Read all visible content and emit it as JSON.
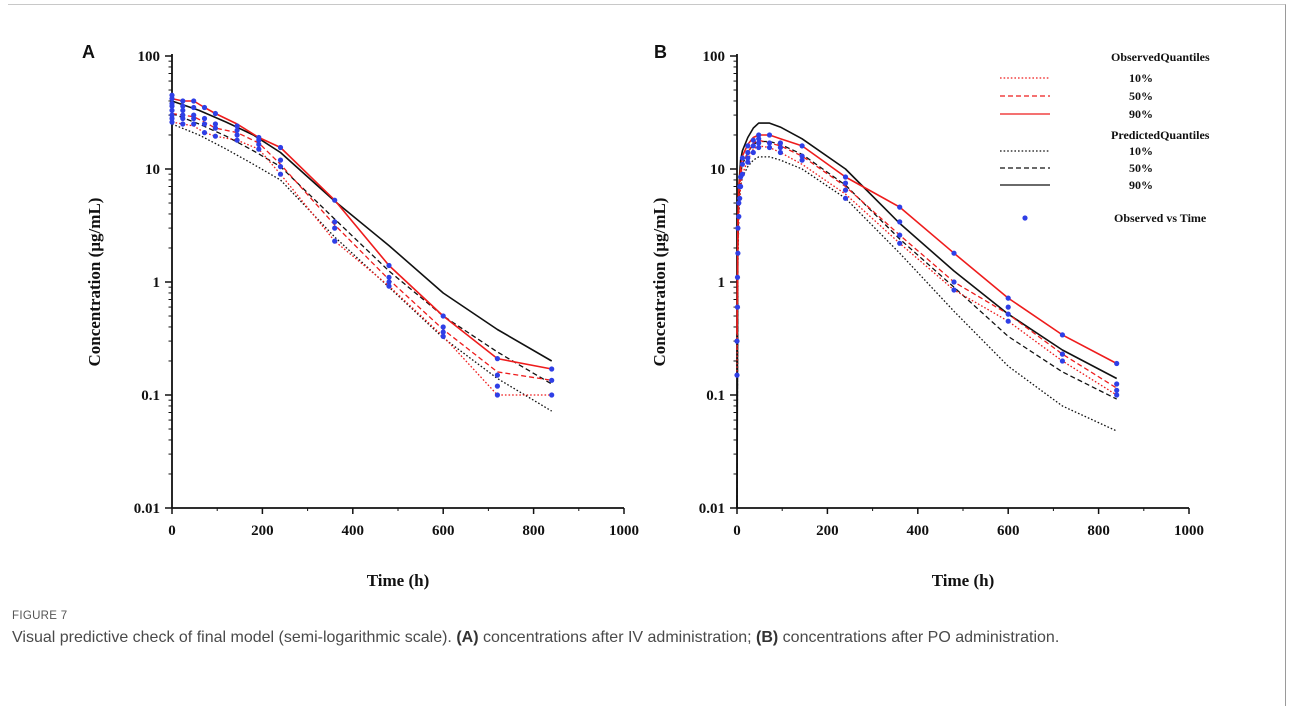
{
  "caption": {
    "figure_label": "FIGURE 7",
    "text_1": "Visual predictive check of final model (semi-logarithmic scale). ",
    "bold_1": "(A)",
    "text_2": " concentrations after IV administration; ",
    "bold_2": "(B)",
    "text_3": " concentrations after PO administration."
  },
  "colors": {
    "observed_quantiles": "#ee1c1c",
    "predicted_quantiles": "#111111",
    "observed_points": "#2f3fe6"
  },
  "legend": {
    "observed_header": "ObservedQuantiles",
    "predicted_header": "PredictedQuantiles",
    "points_label": "Observed vs Time",
    "levels": [
      "10%",
      "50%",
      "90%"
    ],
    "placement": "top-right of panel B"
  },
  "chart_data": [
    {
      "panel": "A",
      "type": "line",
      "xlabel": "Time (h)",
      "ylabel": "Concentration (µg/mL)",
      "xlim": [
        0,
        1000
      ],
      "ylim": [
        0.01,
        100
      ],
      "yscale": "log",
      "x_ticks": [
        0,
        200,
        400,
        600,
        800,
        1000
      ],
      "y_ticks": [
        0.01,
        0.1,
        1,
        10,
        100
      ],
      "grid": false,
      "observed_quantiles": [
        {
          "name": "10%",
          "x": [
            0,
            24,
            48,
            72,
            96,
            144,
            192,
            240,
            360,
            480,
            600,
            720,
            840
          ],
          "y": [
            26,
            25,
            24,
            21,
            19.5,
            18,
            15,
            9,
            2.3,
            0.92,
            0.33,
            0.1,
            0.1
          ]
        },
        {
          "name": "50%",
          "x": [
            0,
            24,
            48,
            72,
            96,
            144,
            192,
            240,
            360,
            480,
            600,
            720,
            840
          ],
          "y": [
            31,
            30,
            29,
            26,
            23,
            21,
            17,
            11,
            3.2,
            1.05,
            0.38,
            0.16,
            0.135
          ]
        },
        {
          "name": "90%",
          "x": [
            0,
            24,
            48,
            72,
            96,
            144,
            192,
            240,
            360,
            480,
            600,
            720,
            840
          ],
          "y": [
            42,
            40,
            40,
            35,
            31,
            25,
            19,
            15.5,
            5.3,
            1.4,
            0.5,
            0.21,
            0.17
          ]
        }
      ],
      "predicted_quantiles": [
        {
          "name": "10%",
          "x": [
            0,
            60,
            120,
            180,
            240,
            360,
            480,
            600,
            720,
            840
          ],
          "y": [
            25,
            20,
            15,
            11,
            8,
            2.5,
            0.9,
            0.32,
            0.14,
            0.072
          ]
        },
        {
          "name": "50%",
          "x": [
            0,
            60,
            120,
            180,
            240,
            360,
            480,
            600,
            720,
            840
          ],
          "y": [
            31,
            25,
            19.5,
            14.5,
            10.5,
            3.6,
            1.25,
            0.5,
            0.24,
            0.125
          ]
        },
        {
          "name": "90%",
          "x": [
            0,
            60,
            120,
            180,
            240,
            360,
            480,
            600,
            720,
            840
          ],
          "y": [
            40,
            33,
            26,
            20,
            14,
            5.2,
            2.1,
            0.8,
            0.38,
            0.2
          ]
        }
      ],
      "observed_points": {
        "x": [
          0,
          0,
          0,
          0,
          0,
          0,
          0,
          0,
          24,
          24,
          24,
          24,
          24,
          24,
          48,
          48,
          48,
          48,
          48,
          72,
          72,
          72,
          72,
          96,
          96,
          96,
          96,
          144,
          144,
          144,
          144,
          192,
          192,
          192,
          192,
          240,
          240,
          240,
          240,
          360,
          360,
          360,
          360,
          480,
          480,
          480,
          480,
          600,
          600,
          600,
          600,
          720,
          720,
          720,
          720,
          840,
          840,
          840
        ],
        "y": [
          26,
          28,
          30,
          33,
          36,
          38,
          42,
          45,
          25,
          28,
          30,
          33,
          36,
          40,
          25,
          28,
          30,
          35,
          40,
          21,
          25,
          28,
          35,
          19.5,
          23,
          25,
          31,
          18,
          20,
          22,
          24,
          15,
          16.5,
          18,
          19,
          9,
          10.5,
          12,
          15.5,
          2.3,
          3,
          3.4,
          5.3,
          0.92,
          1,
          1.1,
          1.4,
          0.33,
          0.36,
          0.4,
          0.5,
          0.1,
          0.12,
          0.15,
          0.21,
          0.1,
          0.135,
          0.17
        ]
      }
    },
    {
      "panel": "B",
      "type": "line",
      "xlabel": "Time (h)",
      "ylabel": "Concentration (µg/mL)",
      "xlim": [
        0,
        1000
      ],
      "ylim": [
        0.01,
        100
      ],
      "yscale": "log",
      "x_ticks": [
        0,
        200,
        400,
        600,
        800,
        1000
      ],
      "y_ticks": [
        0.01,
        0.1,
        1,
        10,
        100
      ],
      "grid": false,
      "observed_quantiles": [
        {
          "name": "10%",
          "x": [
            0,
            1,
            2,
            4,
            8,
            12,
            24,
            36,
            48,
            72,
            96,
            144,
            240,
            360,
            480,
            600,
            720,
            840
          ],
          "y": [
            0.15,
            0.5,
            1.5,
            4,
            7,
            9,
            12,
            15,
            16,
            15.5,
            14,
            11,
            6,
            2.2,
            0.85,
            0.45,
            0.2,
            0.1
          ]
        },
        {
          "name": "50%",
          "x": [
            0,
            1,
            2,
            4,
            8,
            12,
            24,
            36,
            48,
            72,
            96,
            144,
            240,
            360,
            480,
            600,
            720,
            840
          ],
          "y": [
            0.25,
            0.8,
            2.5,
            5.5,
            8.5,
            11,
            14,
            17,
            18,
            17,
            16,
            13,
            7,
            2.6,
            1,
            0.52,
            0.23,
            0.115
          ]
        },
        {
          "name": "90%",
          "x": [
            0,
            1,
            2,
            4,
            8,
            12,
            24,
            36,
            48,
            72,
            96,
            144,
            240,
            360,
            480,
            600,
            720,
            840
          ],
          "y": [
            0.35,
            1.2,
            3.5,
            7,
            10,
            13,
            16.5,
            19,
            20,
            20,
            18.5,
            16,
            8.5,
            4.6,
            1.8,
            0.72,
            0.34,
            0.19
          ]
        }
      ],
      "predicted_quantiles": [
        {
          "name": "10%",
          "x": [
            0,
            2,
            4,
            8,
            12,
            24,
            36,
            48,
            72,
            96,
            144,
            240,
            360,
            480,
            600,
            720,
            840
          ],
          "y": [
            0.01,
            1.5,
            4,
            7,
            8.5,
            10.5,
            12,
            12.8,
            12.8,
            12,
            10,
            5.5,
            1.8,
            0.55,
            0.18,
            0.08,
            0.048
          ]
        },
        {
          "name": "50%",
          "x": [
            0,
            2,
            4,
            8,
            12,
            24,
            36,
            48,
            72,
            96,
            144,
            240,
            360,
            480,
            600,
            720,
            840
          ],
          "y": [
            0.01,
            2,
            5,
            9,
            11,
            14,
            16.5,
            17.5,
            17.5,
            16.5,
            13.5,
            7.2,
            2.4,
            0.9,
            0.33,
            0.16,
            0.092
          ]
        },
        {
          "name": "90%",
          "x": [
            0,
            2,
            4,
            8,
            12,
            24,
            36,
            48,
            72,
            96,
            144,
            240,
            360,
            480,
            600,
            720,
            840
          ],
          "y": [
            0.01,
            3,
            7,
            12,
            14.5,
            19,
            23,
            25.5,
            25.5,
            23.5,
            18.5,
            10,
            3.3,
            1.25,
            0.52,
            0.25,
            0.14
          ]
        }
      ],
      "observed_points": {
        "x": [
          0,
          0,
          1,
          1,
          2,
          2,
          4,
          4,
          6,
          6,
          8,
          8,
          12,
          12,
          12,
          24,
          24,
          24,
          24,
          36,
          36,
          36,
          48,
          48,
          48,
          48,
          72,
          72,
          72,
          96,
          96,
          96,
          144,
          144,
          144,
          240,
          240,
          240,
          240,
          360,
          360,
          360,
          360,
          480,
          480,
          480,
          600,
          600,
          600,
          600,
          720,
          720,
          720,
          840,
          840,
          840,
          840
        ],
        "y": [
          0.15,
          0.3,
          0.6,
          1.1,
          1.8,
          3,
          3.8,
          5,
          5.5,
          7,
          7,
          8.5,
          9,
          11,
          12.5,
          11.5,
          12.5,
          14,
          16,
          14,
          16,
          18,
          15.5,
          17,
          18.5,
          20,
          15.5,
          17,
          20,
          14,
          15.5,
          17,
          12,
          13,
          16,
          5.5,
          6.5,
          7.5,
          8.5,
          2.2,
          2.6,
          3.4,
          4.6,
          0.85,
          1,
          1.8,
          0.45,
          0.52,
          0.6,
          0.72,
          0.2,
          0.23,
          0.34,
          0.1,
          0.11,
          0.125,
          0.19
        ]
      }
    }
  ]
}
